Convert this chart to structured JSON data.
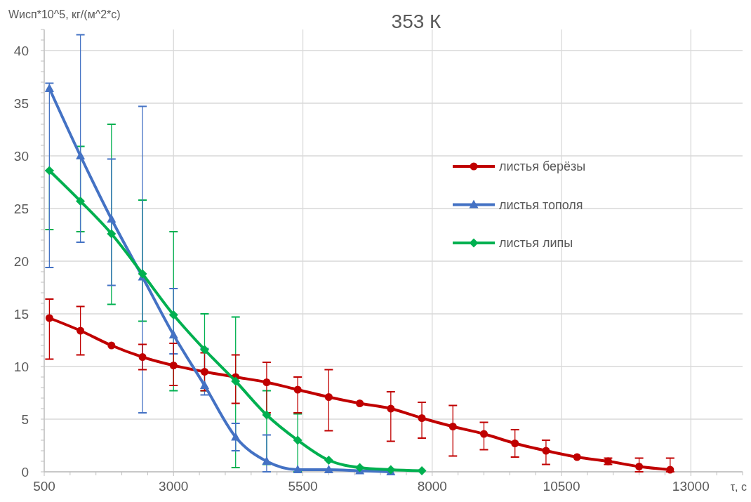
{
  "chart_data": {
    "type": "line",
    "title": "353 К",
    "ylabel": "Wисп*10^5, кг/(м^2*с)",
    "xlabel": "τ, с",
    "xlim": [
      500,
      14000
    ],
    "xticks": [
      500,
      {
        "value": 1000,
        "label": null
      },
      {
        "value": 1500,
        "label": null
      },
      {
        "value": 2000,
        "label": null
      },
      {
        "value": 2500,
        "label": null
      },
      3000,
      {
        "value": 3500,
        "label": null
      },
      {
        "value": 4000,
        "label": null
      },
      {
        "value": 4500,
        "label": null
      },
      {
        "value": 5000,
        "label": null
      },
      5500,
      {
        "value": 6000,
        "label": null
      },
      {
        "value": 6500,
        "label": null
      },
      {
        "value": 7000,
        "label": null
      },
      {
        "value": 7500,
        "label": null
      },
      8000,
      {
        "value": 8500,
        "label": null
      },
      {
        "value": 9000,
        "label": null
      },
      {
        "value": 9500,
        "label": null
      },
      {
        "value": 10000,
        "label": null
      },
      10500,
      {
        "value": 11000,
        "label": null
      },
      {
        "value": 11500,
        "label": null
      },
      {
        "value": 12000,
        "label": null
      },
      {
        "value": 12500,
        "label": null
      },
      13000,
      {
        "value": 13500,
        "label": null
      },
      {
        "value": 14000,
        "label": null
      }
    ],
    "ylim": [
      0,
      42
    ],
    "yticks": [
      0,
      {
        "value": 1,
        "label": null
      },
      {
        "value": 2,
        "label": null
      },
      {
        "value": 3,
        "label": null
      },
      {
        "value": 4,
        "label": null
      },
      5,
      {
        "value": 6,
        "label": null
      },
      {
        "value": 7,
        "label": null
      },
      {
        "value": 8,
        "label": null
      },
      {
        "value": 9,
        "label": null
      },
      10,
      {
        "value": 11,
        "label": null
      },
      {
        "value": 12,
        "label": null
      },
      {
        "value": 13,
        "label": null
      },
      {
        "value": 14,
        "label": null
      },
      15,
      {
        "value": 16,
        "label": null
      },
      {
        "value": 17,
        "label": null
      },
      {
        "value": 18,
        "label": null
      },
      {
        "value": 19,
        "label": null
      },
      20,
      {
        "value": 21,
        "label": null
      },
      {
        "value": 22,
        "label": null
      },
      {
        "value": 23,
        "label": null
      },
      {
        "value": 24,
        "label": null
      },
      25,
      {
        "value": 26,
        "label": null
      },
      {
        "value": 27,
        "label": null
      },
      {
        "value": 28,
        "label": null
      },
      {
        "value": 29,
        "label": null
      },
      30,
      {
        "value": 31,
        "label": null
      },
      {
        "value": 32,
        "label": null
      },
      {
        "value": 33,
        "label": null
      },
      {
        "value": 34,
        "label": null
      },
      35,
      {
        "value": 36,
        "label": null
      },
      {
        "value": 37,
        "label": null
      },
      {
        "value": 38,
        "label": null
      },
      {
        "value": 39,
        "label": null
      },
      40,
      {
        "value": 41,
        "label": null
      },
      {
        "value": 42,
        "label": null
      }
    ],
    "grid": true,
    "legend": "right",
    "line_style": "solid",
    "series": [
      {
        "name": "листья берёзы",
        "color": "#c00000",
        "marker": "circle",
        "x": [
          600,
          1200,
          1800,
          2400,
          3000,
          3600,
          4200,
          4800,
          5400,
          6000,
          6600,
          7200,
          7800,
          8400,
          9000,
          9600,
          10200,
          10800,
          11400,
          12000,
          12600
        ],
        "values": [
          14.6,
          13.4,
          12.0,
          10.9,
          10.1,
          9.5,
          9.0,
          8.5,
          7.8,
          7.1,
          6.5,
          6.0,
          5.1,
          4.3,
          3.6,
          2.7,
          2.0,
          1.4,
          1.0,
          0.5,
          0.2
        ],
        "errors": [
          [
            10.7,
            16.4
          ],
          [
            11.1,
            15.7
          ],
          null,
          [
            9.7,
            12.1
          ],
          [
            8.2,
            12.2
          ],
          [
            7.7,
            11.3
          ],
          [
            6.5,
            11.1
          ],
          [
            5.6,
            10.4
          ],
          [
            5.6,
            9.0
          ],
          [
            3.9,
            9.7
          ],
          null,
          [
            2.9,
            7.6
          ],
          [
            3.2,
            6.6
          ],
          [
            1.5,
            6.3
          ],
          [
            2.1,
            4.7
          ],
          [
            1.4,
            4.0
          ],
          [
            0.7,
            3.0
          ],
          null,
          [
            0.7,
            1.3
          ],
          [
            0,
            1.3
          ],
          [
            0,
            1.3
          ]
        ]
      },
      {
        "name": "листья тополя",
        "color": "#4472c4",
        "marker": "triangle",
        "x": [
          600,
          1200,
          1800,
          2400,
          3000,
          3600,
          4200,
          4800,
          5400,
          6000,
          6600,
          7200
        ],
        "values": [
          36.4,
          30.0,
          24.0,
          18.5,
          13.0,
          8.2,
          3.3,
          1.0,
          0.2,
          0.2,
          0.1,
          0.0
        ],
        "errors": [
          [
            19.4,
            36.9
          ],
          [
            21.8,
            41.5
          ],
          [
            17.7,
            29.7
          ],
          [
            5.6,
            34.7
          ],
          [
            11.2,
            17.4
          ],
          [
            7.3,
            11.7
          ],
          [
            2.0,
            4.6
          ],
          [
            0,
            3.5
          ],
          null,
          null,
          null,
          null
        ]
      },
      {
        "name": "листья липы",
        "color": "#00b050",
        "marker": "diamond",
        "x": [
          600,
          1200,
          1800,
          2400,
          3000,
          3600,
          4200,
          4800,
          5400,
          6000,
          6600,
          7200,
          7800
        ],
        "values": [
          28.6,
          25.7,
          22.6,
          18.8,
          14.9,
          11.6,
          8.6,
          5.4,
          3.0,
          1.1,
          0.4,
          0.2,
          0.1
        ],
        "errors": [
          [
            23.0,
            28.6
          ],
          [
            22.8,
            30.9
          ],
          [
            15.9,
            33.0
          ],
          [
            14.3,
            25.8
          ],
          [
            7.7,
            22.8
          ],
          [
            7.7,
            15.0
          ],
          [
            0.4,
            14.7
          ],
          [
            0.7,
            7.7
          ],
          [
            0,
            5.5
          ],
          null,
          null,
          null,
          null
        ]
      }
    ]
  }
}
